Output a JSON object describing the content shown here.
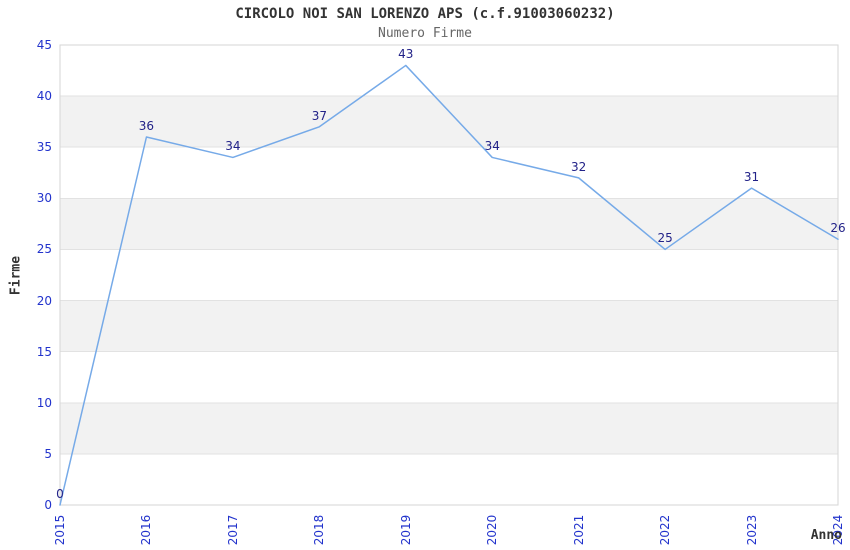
{
  "chart_data": {
    "type": "line",
    "title": "CIRCOLO NOI SAN LORENZO APS (c.f.91003060232)",
    "subtitle": "Numero Firme",
    "xlabel": "Anno",
    "ylabel": "Firme",
    "categories": [
      "2015",
      "2016",
      "2017",
      "2018",
      "2019",
      "2020",
      "2021",
      "2022",
      "2023",
      "2024"
    ],
    "series": [
      {
        "name": "Numero Firme",
        "values": [
          0,
          36,
          34,
          37,
          43,
          34,
          32,
          25,
          31,
          26
        ]
      }
    ],
    "ylim": [
      0,
      45
    ],
    "yticks": [
      0,
      5,
      10,
      15,
      20,
      25,
      30,
      35,
      40,
      45
    ],
    "grid": "horizontal-bands",
    "legend_position": "none",
    "data_labels": "shown above each point",
    "x_tick_rotation": -90,
    "colors": {
      "line": "#76aae8",
      "data_label": "#222288",
      "tick_label": "#2233cc",
      "title": "#333333",
      "subtitle": "#666666",
      "axis_title": "#333333",
      "band_fill": "#f2f2f2",
      "grid_line": "#e2e2e2",
      "border": "#d5d5d5",
      "background": "#ffffff"
    }
  }
}
